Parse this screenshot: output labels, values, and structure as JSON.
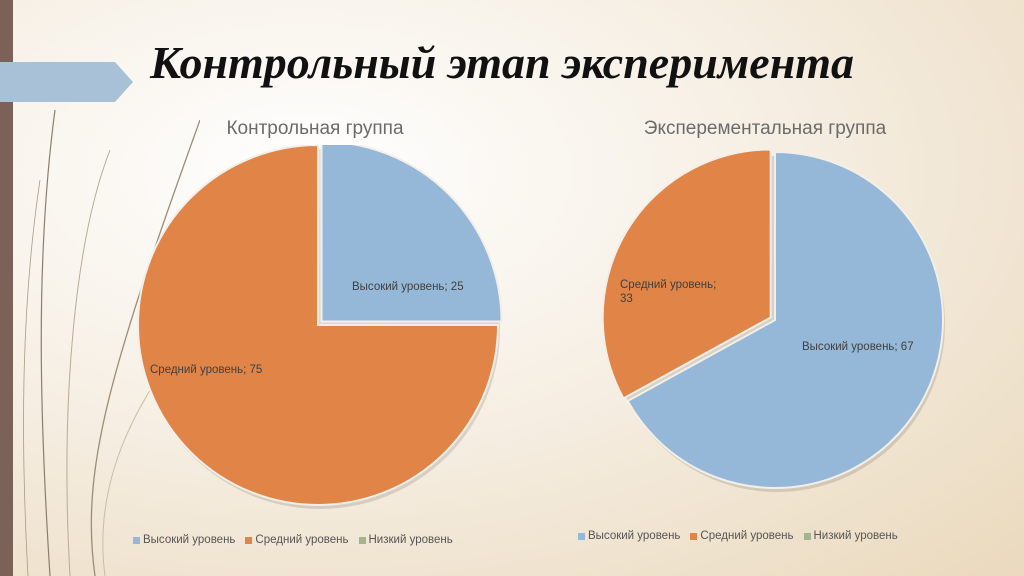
{
  "slide": {
    "title": "Контрольный этап эксперимента"
  },
  "colors": {
    "high": "#95b8d8",
    "medium": "#e08447",
    "low": "#a3b48f",
    "accent_bar": "#7b6258",
    "arrow": "#a9c1d6"
  },
  "chart_data": [
    {
      "type": "pie",
      "title": "Контрольная группа",
      "categories": [
        "Высокий уровень",
        "Средний уровень",
        "Низкий уровень"
      ],
      "values": [
        25,
        75,
        0
      ],
      "data_labels": [
        "Высокий уровень; 25",
        "Средний уровень; 75",
        ""
      ],
      "legend_position": "bottom"
    },
    {
      "type": "pie",
      "title": "Эксперементальная группа",
      "categories": [
        "Высокий уровень",
        "Средний уровень",
        "Низкий уровень"
      ],
      "values": [
        67,
        33,
        0
      ],
      "data_labels": [
        "Высокий уровень; 67",
        "Средний уровень; 33",
        ""
      ],
      "legend_position": "bottom"
    }
  ]
}
